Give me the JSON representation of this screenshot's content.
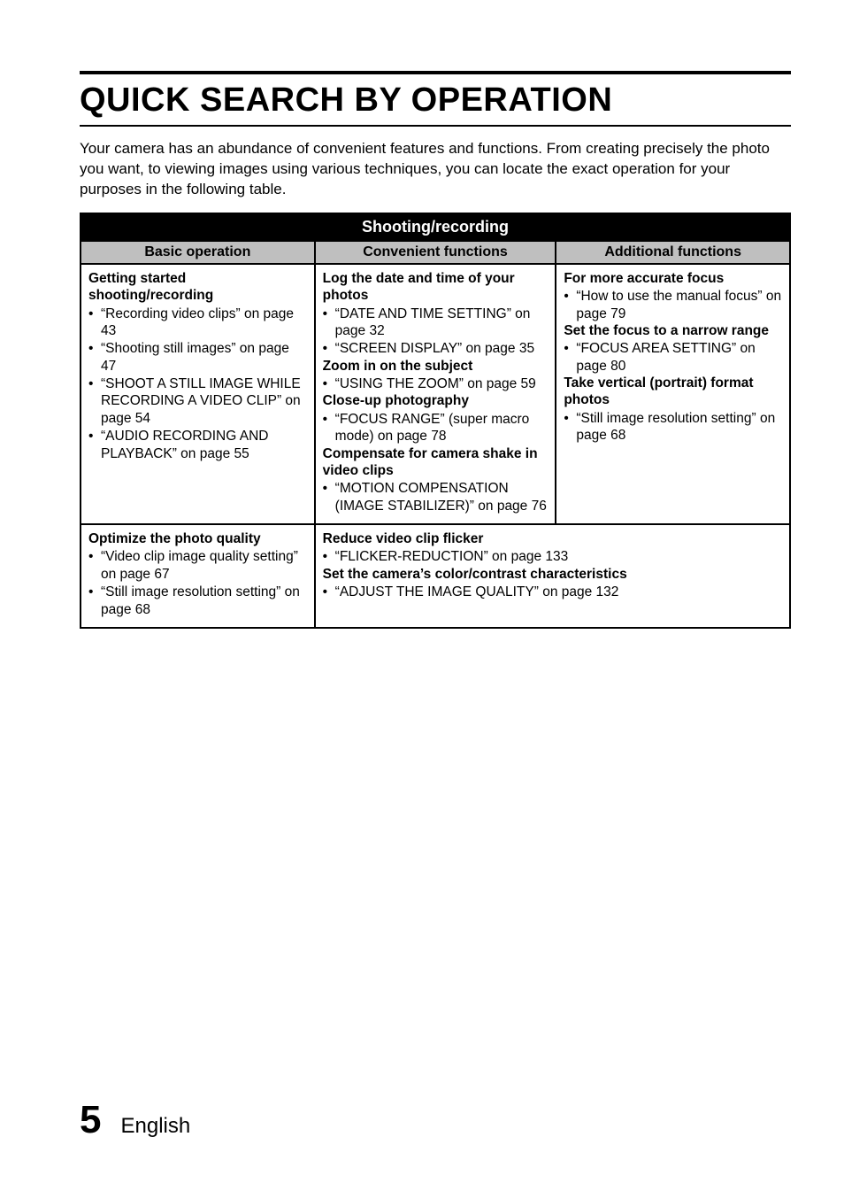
{
  "title": "QUICK SEARCH BY OPERATION",
  "intro": "Your camera has an abundance of convenient features and functions. From creating precisely the photo you want, to viewing images using various techniques, you can locate the exact operation for your purposes in the following table.",
  "table": {
    "spanning_header": "Shooting/recording",
    "col_headers": [
      "Basic operation",
      "Convenient functions",
      "Additional functions"
    ],
    "row1": {
      "basic": {
        "heading": "Getting started shooting/recording",
        "items": [
          "“Recording video clips” on page 43",
          "“Shooting still images” on page 47",
          "“SHOOT A STILL IMAGE WHILE RECORDING A VIDEO CLIP” on page 54",
          "“AUDIO RECORDING AND PLAYBACK” on page 55"
        ]
      },
      "convenient": {
        "groups": [
          {
            "heading": "Log the date and time of your photos",
            "items": [
              "“DATE AND TIME SETTING” on page 32",
              "“SCREEN DISPLAY” on page 35"
            ]
          },
          {
            "heading": "Zoom in on the subject",
            "items": [
              "“USING THE ZOOM” on page 59"
            ]
          },
          {
            "heading": "Close-up photography",
            "items": [
              "“FOCUS RANGE” (super macro mode) on page 78"
            ]
          },
          {
            "heading": "Compensate for camera shake in video clips",
            "items": [
              "“MOTION COMPENSATION (IMAGE STABILIZER)” on page 76"
            ]
          }
        ]
      },
      "additional": {
        "groups": [
          {
            "heading": "For more accurate focus",
            "items": [
              "“How to use the manual focus” on page 79"
            ]
          },
          {
            "heading": "Set the focus to a narrow range",
            "items": [
              "“FOCUS AREA SETTING” on page 80"
            ]
          },
          {
            "heading": "Take vertical (portrait) format photos",
            "items": [
              "“Still image resolution setting” on page 68"
            ]
          }
        ]
      }
    },
    "row2": {
      "basic": {
        "heading": "Optimize the photo quality",
        "items": [
          "“Video clip image quality setting” on page 67",
          "“Still image resolution setting” on page 68"
        ]
      },
      "wide": {
        "groups": [
          {
            "heading": "Reduce video clip flicker",
            "items": [
              "“FLICKER-REDUCTION” on page 133"
            ]
          },
          {
            "heading": "Set the camera’s color/contrast characteristics",
            "items": [
              "“ADJUST THE IMAGE QUALITY” on page 132"
            ]
          }
        ]
      }
    }
  },
  "footer": {
    "page_number": "5",
    "language": "English"
  }
}
